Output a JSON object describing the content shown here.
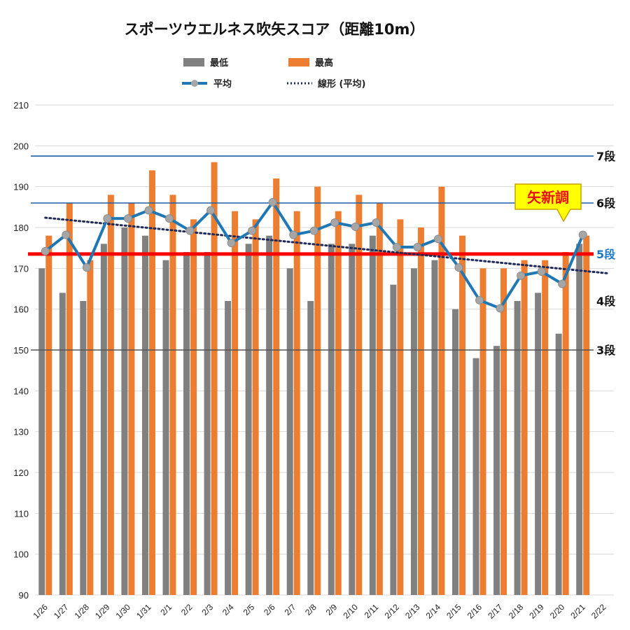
{
  "chart_data": {
    "type": "bar",
    "title": "スポーツウエルネス吹矢スコア（距離10m）",
    "categories": [
      "1/26",
      "1/27",
      "1/28",
      "1/29",
      "1/30",
      "1/31",
      "2/1",
      "2/2",
      "2/3",
      "2/4",
      "2/5",
      "2/6",
      "2/7",
      "2/8",
      "2/9",
      "2/10",
      "2/11",
      "2/12",
      "2/13",
      "2/14",
      "2/15",
      "2/16",
      "2/17",
      "2/18",
      "2/19",
      "2/20",
      "2/21",
      "2/22"
    ],
    "ylim": [
      90,
      210
    ],
    "yticks": [
      "210",
      "200",
      "190",
      "180",
      "170",
      "160",
      "150",
      "140",
      "130",
      "120",
      "110",
      "100",
      "90"
    ],
    "grid": true,
    "legend_position": "top",
    "series": [
      {
        "name": "最低",
        "type": "bar",
        "color": "#808080",
        "values": [
          170,
          164,
          162,
          176,
          180,
          178,
          172,
          174,
          174,
          162,
          176,
          178,
          170,
          162,
          176,
          176,
          178,
          166,
          170,
          172,
          160,
          148,
          151,
          162,
          164,
          154,
          176,
          null
        ]
      },
      {
        "name": "最高",
        "type": "bar",
        "color": "#ed7d31",
        "values": [
          178,
          186,
          172,
          188,
          186,
          194,
          188,
          182,
          196,
          184,
          182,
          192,
          184,
          190,
          184,
          188,
          186,
          182,
          180,
          190,
          178,
          170,
          170,
          172,
          172,
          174,
          178,
          null
        ]
      },
      {
        "name": "平均",
        "type": "line",
        "color": "#1f77b4",
        "values": [
          174.2,
          178.2,
          170.2,
          182.2,
          182.2,
          184.2,
          182.2,
          179.2,
          184.2,
          176.2,
          179.2,
          186.2,
          178.2,
          179.2,
          181.2,
          180.2,
          181.2,
          175.2,
          175.2,
          177.2,
          170.2,
          162.2,
          160.2,
          168.2,
          169.2,
          166.2,
          178.2,
          null
        ]
      },
      {
        "name": "線形 (平均)",
        "type": "trendline",
        "color": "#1f2a5a",
        "start": 182.4,
        "end": 168.8
      }
    ],
    "reference_lines": [
      {
        "label": "7段",
        "value": 197.5,
        "color": "#1f5fa8",
        "label_color": "#111111"
      },
      {
        "label": "6段",
        "value": 186,
        "color": "#1f5fa8",
        "label_color": "#111111"
      },
      {
        "label": "5段",
        "value": 173.5,
        "color": "#ff0000",
        "label_color": "#1f77c9"
      },
      {
        "label": "4段",
        "value": 162,
        "color": null,
        "label_color": "#111111"
      },
      {
        "label": "3段",
        "value": 150,
        "color": "#555555",
        "label_color": "#111111"
      }
    ],
    "annotations": [
      {
        "text": "矢新調",
        "category": "2/21",
        "background": "#ffff00",
        "text_color": "#e8101a"
      }
    ]
  }
}
